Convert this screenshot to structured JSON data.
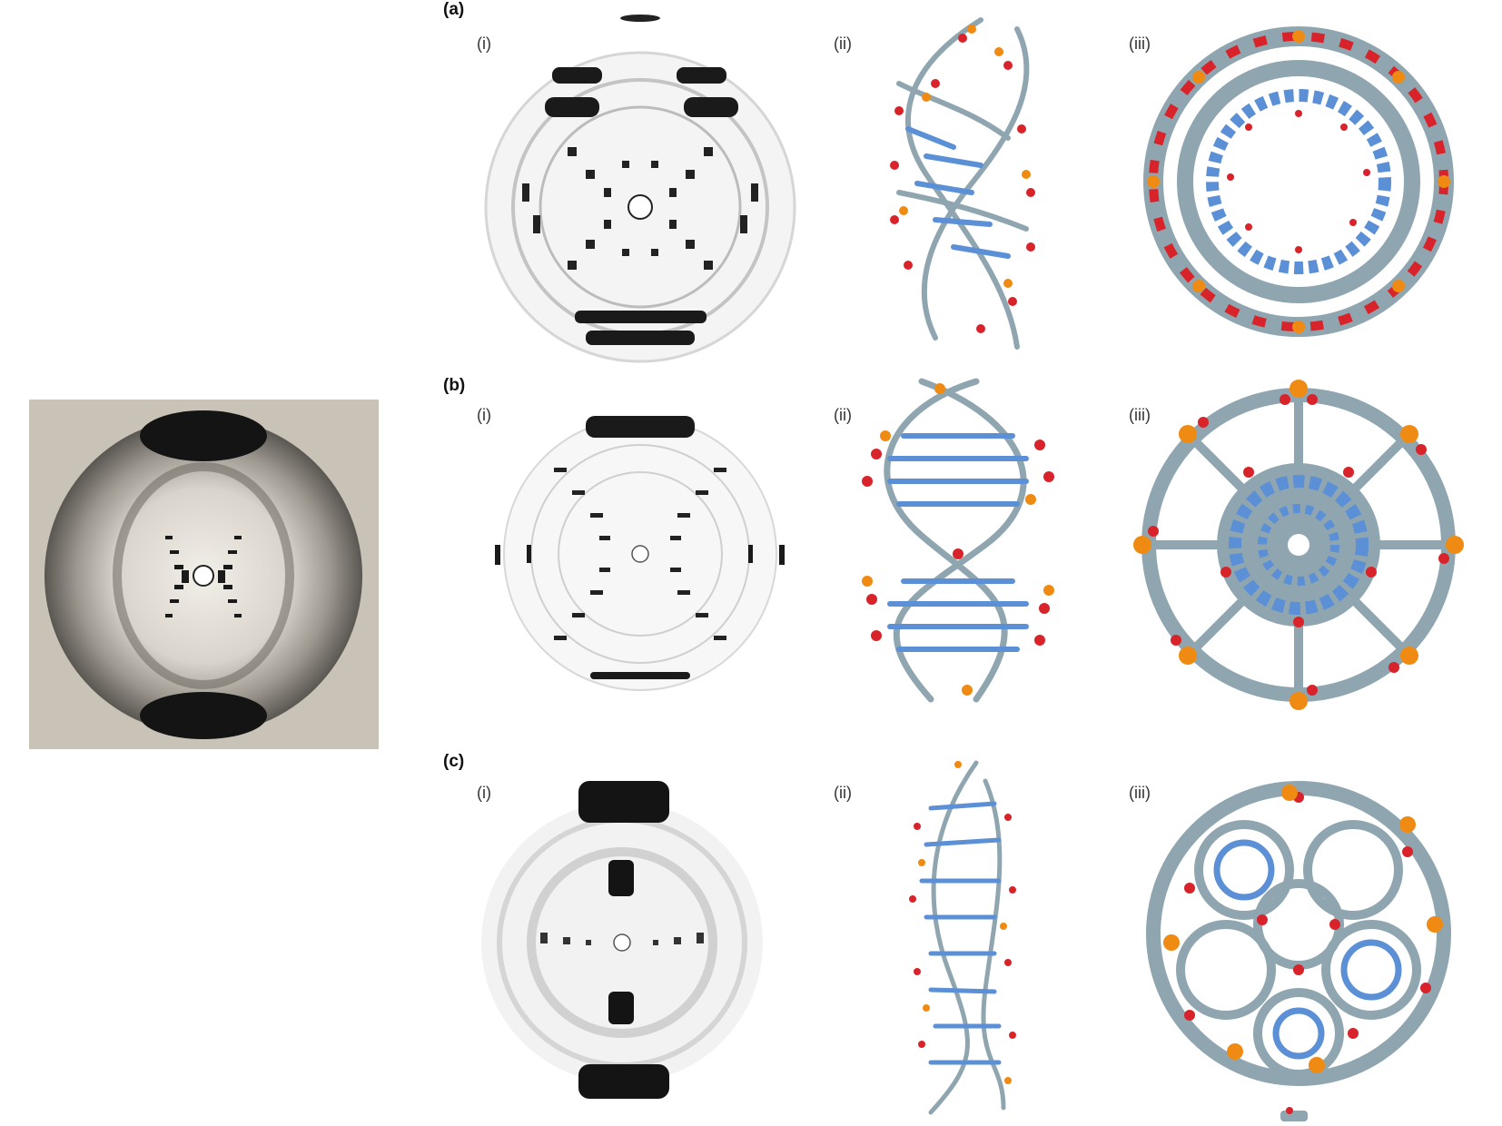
{
  "figure": {
    "panels": [
      {
        "letter": "(a)",
        "sub": [
          "(i)",
          "(ii)",
          "(iii)"
        ]
      },
      {
        "letter": "(b)",
        "sub": [
          "(i)",
          "(ii)",
          "(iii)"
        ]
      },
      {
        "letter": "(c)",
        "sub": [
          "(i)",
          "(ii)",
          "(iii)"
        ]
      }
    ]
  },
  "colors": {
    "photo_background": "#c9c2b6",
    "carbon": "#8fa6b0",
    "nitrogen": "#5b8fd6",
    "oxygen": "#d8232a",
    "phosphorus": "#ef8a12",
    "diffraction_ink": "#1a1a1a"
  }
}
